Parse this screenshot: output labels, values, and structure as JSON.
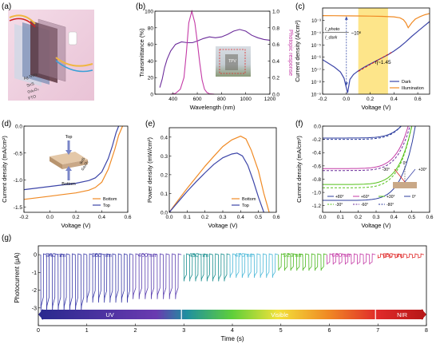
{
  "figure": {
    "panels": [
      {
        "id": "a",
        "label": "(a)"
      },
      {
        "id": "b",
        "label": "(b)"
      },
      {
        "id": "c",
        "label": "(c)"
      },
      {
        "id": "d",
        "label": "(d)"
      },
      {
        "id": "e",
        "label": "(e)"
      },
      {
        "id": "f",
        "label": "(f)"
      },
      {
        "id": "g",
        "label": "(g)"
      }
    ],
    "schematic_a": {
      "layers": [
        "Ag NWs",
        "SnS",
        "Ga₂O₃",
        "FTO"
      ]
    },
    "inset_d": {
      "top": "Top",
      "bottom": "Bottom",
      "layer1": "SnS",
      "layer2": "Ga₂O₃"
    },
    "inset_b_label": "TPV",
    "annotation_c": {
      "ratio_num": "I_photo",
      "ratio_den": "I_dark",
      "ratio_val": "~10⁶",
      "eta": "η~1.45"
    },
    "colors": {
      "orange": "#f08a24",
      "blue": "#3c45a8",
      "purple": "#6b2b9a",
      "magenta": "#c43aa6",
      "green": "#55c11a",
      "darkblue": "#2c3d9e",
      "red": "#d62020",
      "yellow_band": "#fde58a"
    }
  },
  "chart_data": [
    {
      "panel": "b",
      "type": "line",
      "xlabel": "Wavelength (nm)",
      "ylabel": "Transmittance (%)",
      "y2label": "Photopic response",
      "xlim": [
        250,
        1200
      ],
      "ylim": [
        0,
        100
      ],
      "y2lim": [
        0,
        1.0
      ],
      "xticks": [
        400,
        600,
        800,
        1000,
        1200
      ],
      "yticks": [
        0,
        20,
        40,
        60,
        80,
        100
      ],
      "y2ticks": [
        "0.0",
        "0.2",
        "0.4",
        "0.6",
        "0.8",
        "1.0"
      ],
      "series": [
        {
          "x": [
            290,
            310,
            330,
            350,
            380,
            420,
            470,
            520,
            560,
            600,
            650,
            700,
            750,
            800,
            850,
            900,
            950,
            1000,
            1050,
            1100,
            1150,
            1200
          ],
          "values": [
            8,
            18,
            32,
            42,
            52,
            60,
            63,
            62,
            62,
            64,
            67,
            69,
            68,
            69,
            72,
            76,
            78,
            76,
            71,
            68,
            66,
            65
          ]
        },
        {
          "x": [
            380,
            420,
            460,
            490,
            510,
            530,
            555,
            580,
            600,
            620,
            640,
            660,
            680,
            700,
            740
          ],
          "values": [
            0.0,
            0.01,
            0.06,
            0.2,
            0.5,
            0.86,
            1.0,
            0.86,
            0.63,
            0.38,
            0.17,
            0.06,
            0.02,
            0.005,
            0.0
          ]
        }
      ]
    },
    {
      "panel": "c",
      "type": "line",
      "xlabel": "Voltage (V)",
      "ylabel": "Current density (A/cm²)",
      "xlim": [
        -0.2,
        0.7
      ],
      "ylim_log10": [
        -9,
        -2
      ],
      "xticks": [
        "-0.2",
        "0.0",
        "0.2",
        "0.4",
        "0.6"
      ],
      "yticks": [
        "10⁻⁹",
        "10⁻⁸",
        "10⁻⁷",
        "10⁻⁶",
        "10⁻⁵",
        "10⁻⁴",
        "10⁻³"
      ],
      "highlight_x": [
        0.1,
        0.35
      ],
      "series": [
        {
          "name": "Dark",
          "x": [
            -0.2,
            -0.15,
            -0.1,
            -0.05,
            -0.02,
            0.0,
            0.01,
            0.03,
            0.06,
            0.1,
            0.15,
            0.2,
            0.25,
            0.3,
            0.35,
            0.4,
            0.45,
            0.5,
            0.55,
            0.6,
            0.65,
            0.7
          ],
          "log10": [
            -6.2,
            -6.5,
            -6.8,
            -7.2,
            -7.7,
            -8.5,
            -8.9,
            -7.8,
            -7.4,
            -7.1,
            -6.8,
            -6.55,
            -6.3,
            -6.05,
            -5.8,
            -5.5,
            -5.15,
            -4.75,
            -4.3,
            -3.9,
            -3.5,
            -3.1
          ]
        },
        {
          "name": "Illumination",
          "x": [
            -0.2,
            -0.1,
            0.0,
            0.1,
            0.2,
            0.3,
            0.4,
            0.45,
            0.48,
            0.5,
            0.52,
            0.55,
            0.58,
            0.62,
            0.66,
            0.7
          ],
          "log10": [
            -2.62,
            -2.63,
            -2.64,
            -2.65,
            -2.66,
            -2.68,
            -2.72,
            -2.8,
            -2.95,
            -3.2,
            -3.6,
            -3.2,
            -2.9,
            -2.7,
            -2.55,
            -2.45
          ]
        }
      ]
    },
    {
      "panel": "d",
      "type": "line",
      "xlabel": "Voltage (V)",
      "ylabel": "Current density (mA/cm²)",
      "xlim": [
        -0.2,
        0.6
      ],
      "ylim": [
        -1.6,
        0.0
      ],
      "xticks": [
        "-0.2",
        "0.0",
        "0.2",
        "0.4",
        "0.6"
      ],
      "yticks": [
        "-1.5",
        "-1.0",
        "-0.5",
        "0.0"
      ],
      "series": [
        {
          "name": "Bottom",
          "x": [
            -0.2,
            -0.1,
            0.0,
            0.1,
            0.2,
            0.3,
            0.35,
            0.4,
            0.45,
            0.5,
            0.53,
            0.56
          ],
          "values": [
            -1.36,
            -1.33,
            -1.3,
            -1.27,
            -1.24,
            -1.19,
            -1.14,
            -1.04,
            -0.8,
            -0.43,
            -0.17,
            0.0
          ]
        },
        {
          "name": "Top",
          "x": [
            -0.2,
            -0.1,
            0.0,
            0.1,
            0.2,
            0.3,
            0.35,
            0.4,
            0.45,
            0.48,
            0.51,
            0.53
          ],
          "values": [
            -1.18,
            -1.15,
            -1.12,
            -1.09,
            -1.06,
            -1.01,
            -0.96,
            -0.85,
            -0.6,
            -0.38,
            -0.12,
            0.0
          ]
        }
      ]
    },
    {
      "panel": "e",
      "type": "line",
      "xlabel": "Voltage (V)",
      "ylabel": "Power density (mW/cm²)",
      "xlim": [
        0.0,
        0.6
      ],
      "ylim": [
        0.0,
        0.45
      ],
      "xticks": [
        "0.0",
        "0.1",
        "0.2",
        "0.3",
        "0.4",
        "0.5",
        "0.6"
      ],
      "yticks": [
        "0.0",
        "0.1",
        "0.2",
        "0.3",
        "0.4"
      ],
      "series": [
        {
          "name": "Bottom",
          "x": [
            0.0,
            0.05,
            0.1,
            0.15,
            0.2,
            0.25,
            0.3,
            0.35,
            0.4,
            0.43,
            0.46,
            0.5,
            0.53,
            0.56
          ],
          "values": [
            0.0,
            0.065,
            0.127,
            0.186,
            0.245,
            0.298,
            0.35,
            0.385,
            0.405,
            0.39,
            0.33,
            0.22,
            0.1,
            0.0
          ]
        },
        {
          "name": "Top",
          "x": [
            0.0,
            0.05,
            0.1,
            0.15,
            0.2,
            0.25,
            0.3,
            0.35,
            0.38,
            0.41,
            0.44,
            0.47,
            0.5,
            0.53
          ],
          "values": [
            0.0,
            0.056,
            0.111,
            0.162,
            0.21,
            0.255,
            0.29,
            0.31,
            0.315,
            0.3,
            0.25,
            0.17,
            0.08,
            0.0
          ]
        }
      ]
    },
    {
      "panel": "f",
      "type": "line",
      "xlabel": "Voltage (V)",
      "ylabel": "Current density (mA/cm²)",
      "xlim": [
        0.0,
        0.6
      ],
      "ylim": [
        -1.3,
        0.0
      ],
      "xticks": [
        "0.0",
        "0.1",
        "0.2",
        "0.3",
        "0.4",
        "0.5",
        "0.6"
      ],
      "yticks": [
        "-1.2",
        "-1.0",
        "-0.8",
        "-0.6",
        "-0.4",
        "-0.2",
        "0.0"
      ],
      "legend_angles": [
        "0°",
        "-30°",
        "+30°",
        "-60°",
        "+60°",
        "+80°",
        "-80°"
      ],
      "series": [
        {
          "name": "+80°",
          "jsc": -0.18,
          "voc": 0.44,
          "dash": false,
          "color": "#2c3d9e"
        },
        {
          "name": "+60°",
          "jsc": -0.64,
          "voc": 0.48,
          "dash": false,
          "color": "#c43aa6"
        },
        {
          "name": "+30°",
          "jsc": -0.88,
          "voc": 0.5,
          "dash": false,
          "color": "#55c11a"
        },
        {
          "name": "0°",
          "jsc": -1.12,
          "voc": 0.52,
          "dash": false,
          "color": "#2c3d9e"
        },
        {
          "name": "-30°",
          "jsc": -0.93,
          "voc": 0.5,
          "dash": true,
          "color": "#55c11a"
        },
        {
          "name": "-60°",
          "jsc": -0.67,
          "voc": 0.49,
          "dash": true,
          "color": "#6b2b9a"
        },
        {
          "name": "-80°",
          "jsc": -0.2,
          "voc": 0.44,
          "dash": true,
          "color": "#2c3d9e"
        }
      ]
    },
    {
      "panel": "g",
      "type": "line",
      "xlabel": "Time (s)",
      "ylabel": "Photocurrent (μA)",
      "xlim": [
        0,
        8
      ],
      "ylim": [
        -4.0,
        0.5
      ],
      "xticks": [
        "0",
        "1",
        "2",
        "3",
        "4",
        "5",
        "6",
        "7",
        "8"
      ],
      "yticks": [
        "-3",
        "-2",
        "-1",
        "0"
      ],
      "bands": [
        {
          "label": "UV",
          "start": 0.0,
          "end": 2.95
        },
        {
          "label": "Visible",
          "start": 3.0,
          "end": 6.95
        },
        {
          "label": "NIR",
          "start": 7.0,
          "end": 8.0
        }
      ],
      "wavelengths": [
        {
          "label": "340 nm",
          "start": 0.05,
          "end": 1.0,
          "peak": -3.2,
          "pulses": 8,
          "color": "#3a3aa8"
        },
        {
          "label": "365 nm",
          "start": 1.0,
          "end": 1.95,
          "peak": -2.7,
          "pulses": 8,
          "color": "#3a3aa8"
        },
        {
          "label": "400 nm",
          "start": 1.95,
          "end": 2.95,
          "peak": -2.5,
          "pulses": 8,
          "color": "#5a3fb0"
        },
        {
          "label": "430 nm",
          "start": 3.0,
          "end": 3.95,
          "peak": -1.5,
          "pulses": 8,
          "color": "#1a8f8f"
        },
        {
          "label": "470 nm",
          "start": 3.95,
          "end": 4.95,
          "peak": -1.3,
          "pulses": 8,
          "color": "#4ab8d8"
        },
        {
          "label": "523 nm",
          "start": 4.95,
          "end": 5.95,
          "peak": -0.9,
          "pulses": 8,
          "color": "#4cb820"
        },
        {
          "label": "630 nm",
          "start": 5.95,
          "end": 6.95,
          "peak": -0.55,
          "pulses": 8,
          "color": "#c43aa6"
        },
        {
          "label": "850 nm",
          "start": 7.0,
          "end": 7.95,
          "peak": -0.18,
          "pulses": 8,
          "color": "#e02a2a"
        }
      ]
    }
  ]
}
